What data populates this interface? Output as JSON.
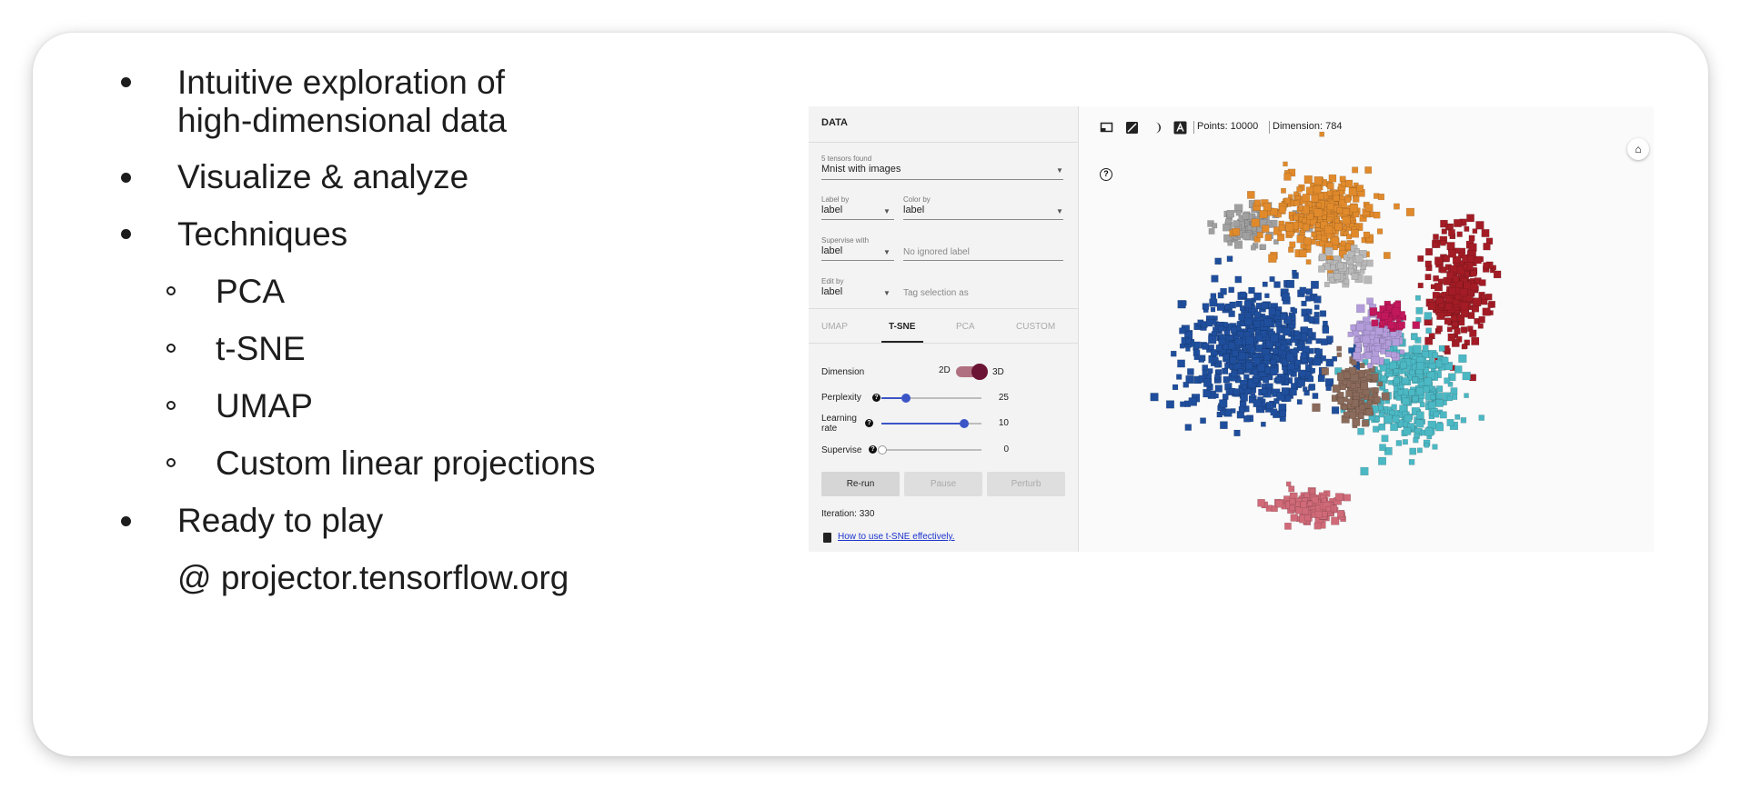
{
  "slide": {
    "bullets": [
      {
        "line1": "Intuitive exploration of",
        "line2": "high-dimensional data"
      },
      {
        "line1": "Visualize & analyze"
      },
      {
        "line1": "Techniques"
      },
      {
        "line1": "Ready to play"
      }
    ],
    "sub_bullets": [
      "PCA",
      "t-SNE",
      "UMAP",
      "Custom linear projections"
    ],
    "url": "@ projector.tensorflow.org"
  },
  "projector": {
    "panel_title": "DATA",
    "tensors_found_label": "5 tensors found",
    "dataset_value": "Mnist with images",
    "label_by_label": "Label by",
    "label_by_value": "label",
    "color_by_label": "Color by",
    "color_by_value": "label",
    "supervise_with_label": "Supervise with",
    "supervise_with_value": "label",
    "ignored_label_placeholder": "No ignored label",
    "edit_by_label": "Edit by",
    "edit_by_value": "label",
    "tag_selection_placeholder": "Tag selection as",
    "tabs": [
      "UMAP",
      "T-SNE",
      "PCA",
      "CUSTOM"
    ],
    "active_tab": "T-SNE",
    "dimension_label": "Dimension",
    "dim_2d": "2D",
    "dim_3d": "3D",
    "perplexity_label": "Perplexity",
    "perplexity_value": "25",
    "learning_rate_label_1": "Learning",
    "learning_rate_label_2": "rate",
    "learning_rate_value": "10",
    "supervise_label": "Supervise",
    "supervise_value": "0",
    "btn_rerun": "Re-run",
    "btn_pause": "Pause",
    "btn_perturb": "Perturb",
    "iteration_text": "Iteration: 330",
    "help_link": "How to use t-SNE effectively.",
    "points_text": "Points: 10000",
    "dimension_text": "Dimension: 784",
    "help_icon_glyph": "?",
    "home_icon_glyph": "⌂",
    "cluster_colors": [
      "#1f4e9c",
      "#e08a2c",
      "#a31c25",
      "#4bb8c4",
      "#a0a0a0",
      "#8a6a5a",
      "#d06a78",
      "#c2185b",
      "#b39ddb",
      "#b8b8b8"
    ]
  }
}
